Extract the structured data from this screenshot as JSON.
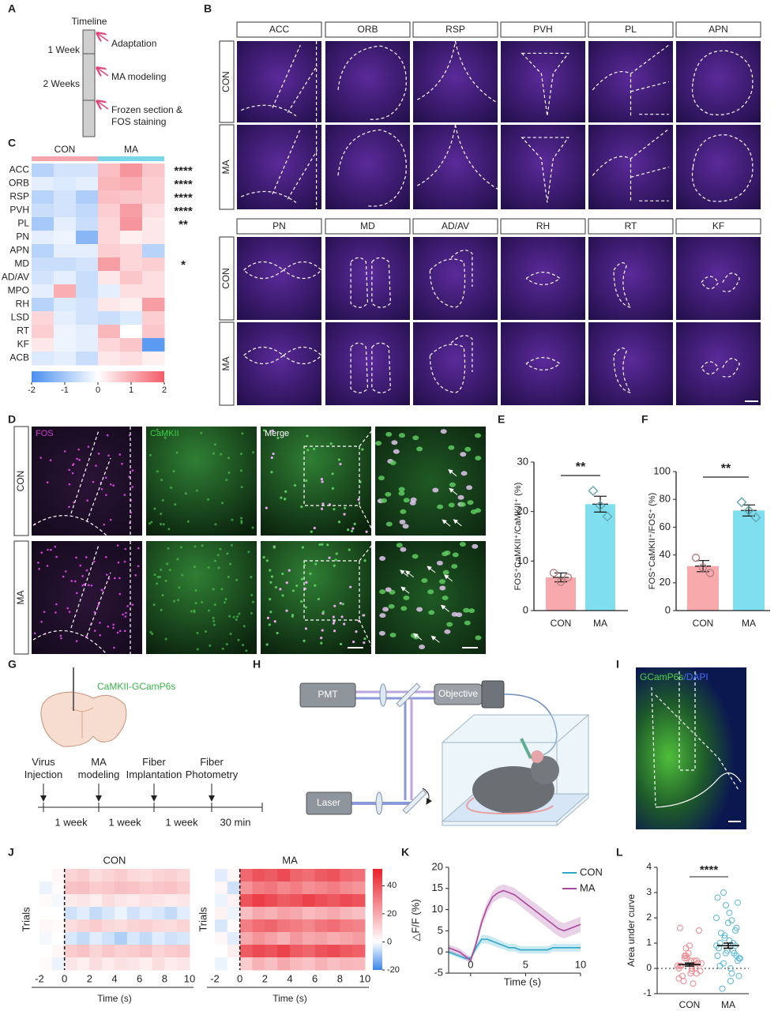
{
  "panel_labels": [
    "A",
    "B",
    "C",
    "D",
    "E",
    "F",
    "G",
    "H",
    "I",
    "J",
    "K",
    "L"
  ],
  "timeline": {
    "title": "Timeline",
    "periods": [
      "1 Week",
      "2 Weeks"
    ],
    "events": [
      "Adaptation",
      "MA modeling",
      "Frozen section & FOS staining"
    ]
  },
  "brain_regions": {
    "groups": [
      "CON",
      "MA"
    ],
    "rows": [
      [
        "ACC",
        "ORB",
        "RSP",
        "PVH",
        "PL",
        "APN"
      ],
      [
        "PN",
        "MD",
        "AD/AV",
        "RH",
        "RT",
        "KF"
      ]
    ]
  },
  "fos_staining": {
    "channels": [
      "FOS",
      "CaMKII",
      "Merge"
    ],
    "groups": [
      "CON",
      "MA"
    ]
  },
  "surgery": {
    "virus": "CaMKII-GCamP6s",
    "steps": [
      "Virus Injection",
      "MA modeling",
      "Fiber Implantation",
      "Fiber Photometry"
    ],
    "intervals": [
      "1 week",
      "1 week",
      "1 week",
      "30 min"
    ]
  },
  "photometry_setup": {
    "components": [
      "PMT",
      "Objective",
      "Laser"
    ]
  },
  "histology": {
    "stains": [
      "GCamP6s",
      "/DAPI"
    ]
  },
  "chart_data": [
    {
      "type": "heatmap",
      "groups": [
        "CON",
        "MA"
      ],
      "group_colors": [
        "#f4a6ac",
        "#79d6e8"
      ],
      "categories": [
        "ACC",
        "ORB",
        "RSP",
        "PVH",
        "PL",
        "PN",
        "APN",
        "MD",
        "AD/AV",
        "MPO",
        "RH",
        "LSD",
        "RT",
        "KF",
        "ACB"
      ],
      "values": [
        [
          -0.8,
          -0.5,
          -0.5,
          0.8,
          1.3,
          0.7
        ],
        [
          -0.3,
          -0.4,
          -0.3,
          0.9,
          1.0,
          0.6
        ],
        [
          -0.8,
          -0.5,
          -0.9,
          0.8,
          0.7,
          0.6
        ],
        [
          -0.6,
          -0.5,
          -0.7,
          0.6,
          1.2,
          0.4
        ],
        [
          -1.0,
          -0.3,
          -0.6,
          0.5,
          1.3,
          0.3
        ],
        [
          -0.3,
          -0.2,
          -1.3,
          0.5,
          0.2,
          0.3
        ],
        [
          -0.8,
          -0.3,
          -0.3,
          0.6,
          0.5,
          -0.8
        ],
        [
          -0.6,
          -0.6,
          -0.5,
          1.2,
          0.5,
          0.6
        ],
        [
          -0.5,
          -0.3,
          -0.6,
          0.3,
          0.7,
          0.4
        ],
        [
          -0.3,
          1.0,
          -0.6,
          -0.3,
          0.4,
          0.4
        ],
        [
          -0.8,
          -0.4,
          -0.5,
          0.3,
          0.2,
          1.2
        ],
        [
          0.5,
          -0.3,
          -0.5,
          -0.6,
          -0.4,
          0.6
        ],
        [
          0.6,
          -0.2,
          -0.3,
          0.9,
          0.0,
          0.7
        ],
        [
          0.3,
          -0.2,
          -0.3,
          0.5,
          0.7,
          -1.8
        ],
        [
          -0.4,
          -0.3,
          -0.6,
          0.3,
          0.4,
          0.2
        ]
      ],
      "significance": [
        "****",
        "****",
        "****",
        "****",
        "**",
        null,
        null,
        "*",
        null,
        null,
        null,
        null,
        null,
        null,
        null
      ],
      "colors": [
        "#4a90f0",
        "#ffffff",
        "#f25c68"
      ],
      "zlim": [
        -2,
        2
      ],
      "zticks": [
        -2,
        -1,
        0,
        1,
        2
      ]
    },
    {
      "type": "bar",
      "categories": [
        "CON",
        "MA"
      ],
      "values": [
        6.7,
        21.5
      ],
      "errors": [
        0.9,
        1.6
      ],
      "points": [
        [
          7.6,
          5.8,
          6.7
        ],
        [
          24.2,
          21.2,
          19.0
        ]
      ],
      "colors": [
        "#f7a9ac",
        "#80dfee"
      ],
      "ylim": [
        0,
        30
      ],
      "yticks": [
        0,
        10,
        20,
        30
      ],
      "y_label": "FOS⁺CaMKII⁺/CaMKII⁺ (%)",
      "significance": "**"
    },
    {
      "type": "bar",
      "categories": [
        "CON",
        "MA"
      ],
      "values": [
        32,
        72
      ],
      "errors": [
        4,
        4
      ],
      "points": [
        [
          38,
          31,
          27
        ],
        [
          78,
          72,
          67
        ]
      ],
      "colors": [
        "#f7a9ac",
        "#80dfee"
      ],
      "ylim": [
        0,
        100
      ],
      "yticks": [
        0,
        20,
        40,
        60,
        80,
        100
      ],
      "y_label": "FOS⁺CaMKII⁺/FOS⁺ (%)",
      "significance": "**"
    },
    {
      "type": "heatmap",
      "title": "CON",
      "x_label": "Time (s)",
      "y_label": "Trials",
      "xlim": [
        -2,
        10
      ],
      "xticks": [
        -2,
        0,
        2,
        4,
        6,
        8,
        10
      ],
      "colors": [
        "#3a86e8",
        "#ffffff",
        "#e8202a"
      ],
      "zlim": [
        -20,
        52
      ],
      "values": [
        [
          0,
          2,
          10,
          12,
          8,
          10,
          12,
          9,
          8,
          10,
          11,
          9
        ],
        [
          -2,
          1,
          14,
          15,
          12,
          13,
          15,
          14,
          12,
          13,
          14,
          12
        ],
        [
          1,
          -1,
          5,
          6,
          4,
          8,
          6,
          5,
          7,
          6,
          5,
          6
        ],
        [
          0,
          0,
          -5,
          -3,
          -6,
          -4,
          -2,
          -5,
          -3,
          -4,
          -6,
          -3
        ],
        [
          2,
          1,
          8,
          10,
          12,
          9,
          8,
          10,
          11,
          9,
          8,
          10
        ],
        [
          -1,
          0,
          -4,
          -6,
          -3,
          -5,
          -8,
          -4,
          -6,
          -3,
          -5,
          -4
        ],
        [
          0,
          2,
          12,
          14,
          10,
          13,
          11,
          12,
          14,
          10,
          12,
          13
        ],
        [
          1,
          -2,
          6,
          4,
          8,
          5,
          7,
          6,
          4,
          8,
          5,
          6
        ]
      ]
    },
    {
      "type": "heatmap",
      "title": "MA",
      "x_label": "Time (s)",
      "y_label": "Trials",
      "xlim": [
        -2,
        10
      ],
      "xticks": [
        -2,
        0,
        2,
        4,
        6,
        8,
        10
      ],
      "colors": [
        "#3a86e8",
        "#ffffff",
        "#e8202a"
      ],
      "zlim": [
        -20,
        52
      ],
      "zticks": [
        -20,
        0,
        20,
        40
      ],
      "values": [
        [
          -3,
          2,
          35,
          40,
          38,
          42,
          36,
          34,
          38,
          40,
          35,
          33
        ],
        [
          2,
          -5,
          25,
          30,
          32,
          28,
          30,
          26,
          28,
          30,
          27,
          25
        ],
        [
          -2,
          3,
          40,
          45,
          42,
          38,
          40,
          44,
          41,
          39,
          42,
          40
        ],
        [
          3,
          -2,
          15,
          20,
          18,
          22,
          20,
          16,
          18,
          20,
          17,
          15
        ],
        [
          -4,
          1,
          30,
          34,
          36,
          32,
          30,
          28,
          32,
          34,
          30,
          29
        ],
        [
          2,
          -3,
          20,
          25,
          22,
          18,
          24,
          20,
          22,
          19,
          21,
          23
        ],
        [
          0,
          4,
          38,
          42,
          40,
          44,
          38,
          36,
          40,
          42,
          39,
          37
        ],
        [
          -2,
          0,
          12,
          18,
          15,
          20,
          16,
          14,
          18,
          15,
          17,
          16
        ]
      ]
    },
    {
      "type": "line",
      "x": [
        -2,
        -1.5,
        -1,
        -0.5,
        0,
        0.5,
        1,
        1.5,
        2,
        2.5,
        3,
        3.5,
        4,
        4.5,
        5,
        5.5,
        6,
        6.5,
        7,
        7.5,
        8,
        8.5,
        9,
        9.5,
        10
      ],
      "series": [
        {
          "name": "CON",
          "color": "#2aa7c9",
          "values": [
            0,
            -0.5,
            -1,
            -1.5,
            -1.5,
            1,
            3,
            3,
            2.5,
            2,
            1.5,
            1,
            1,
            0.5,
            0.5,
            0.5,
            0.5,
            0.5,
            0.5,
            1,
            1,
            1,
            1,
            1,
            1
          ],
          "errors": [
            0.5,
            0.5,
            0.5,
            0.5,
            0.5,
            0.8,
            1,
            1,
            1,
            1,
            0.9,
            0.9,
            0.9,
            0.9,
            0.9,
            0.9,
            0.9,
            0.9,
            0.9,
            0.9,
            0.9,
            0.9,
            0.9,
            0.9,
            0.9
          ]
        },
        {
          "name": "MA",
          "color": "#a9489e",
          "values": [
            1,
            0.5,
            0,
            -1,
            -2,
            2,
            7,
            10.5,
            13,
            14,
            14.5,
            14,
            13.5,
            12.5,
            11.5,
            10.5,
            9.5,
            8.5,
            7.5,
            6.5,
            5.5,
            5,
            5.5,
            6,
            6.5
          ],
          "errors": [
            0.8,
            0.8,
            0.8,
            0.8,
            0.8,
            1,
            1.2,
            1.3,
            1.4,
            1.5,
            1.5,
            1.5,
            1.6,
            1.6,
            1.7,
            1.7,
            1.8,
            1.8,
            1.8,
            1.8,
            1.8,
            1.8,
            1.8,
            1.8,
            1.8
          ]
        }
      ],
      "xlim": [
        -2,
        10
      ],
      "xticks": [
        0,
        5,
        10
      ],
      "ylim": [
        -5,
        20
      ],
      "yticks": [
        -5,
        0,
        5,
        10,
        15,
        20
      ],
      "x_label": "Time (s)",
      "y_label": "△F/F (%)"
    },
    {
      "type": "strip",
      "categories": [
        "CON",
        "MA"
      ],
      "colors": [
        "#f0868d",
        "#5cb8d6"
      ],
      "points": [
        [
          0.1,
          -0.2,
          0.3,
          0.5,
          -0.4,
          0.2,
          0,
          0.8,
          1.6,
          1.5,
          -0.6,
          0.4,
          0.1,
          -0.1,
          0.3,
          0.6,
          -0.3,
          0.2,
          0,
          0.9,
          -0.5,
          0.1,
          0.3,
          -0.2,
          0.4,
          0,
          0.2,
          -0.1,
          0.5,
          0.1
        ],
        [
          0.9,
          1.5,
          2.2,
          3.0,
          2.8,
          0.5,
          -0.5,
          1.2,
          0.8,
          0.3,
          1.9,
          2.5,
          0.1,
          -0.3,
          1.0,
          0.7,
          1.4,
          0.4,
          0.6,
          1.8,
          -0.8,
          2.0,
          0.9,
          1.1,
          0.2,
          0.5,
          1.6,
          0.0,
          1.3,
          0.8,
          2.6,
          -0.2,
          0.6,
          1.0,
          0.4,
          0.7
        ]
      ],
      "means": [
        0.15,
        0.9
      ],
      "errors": [
        0.06,
        0.1
      ],
      "ylim": [
        -1,
        4
      ],
      "yticks": [
        -1,
        0,
        1,
        2,
        3,
        4
      ],
      "y_label": "Area under curve",
      "significance": "****"
    }
  ]
}
